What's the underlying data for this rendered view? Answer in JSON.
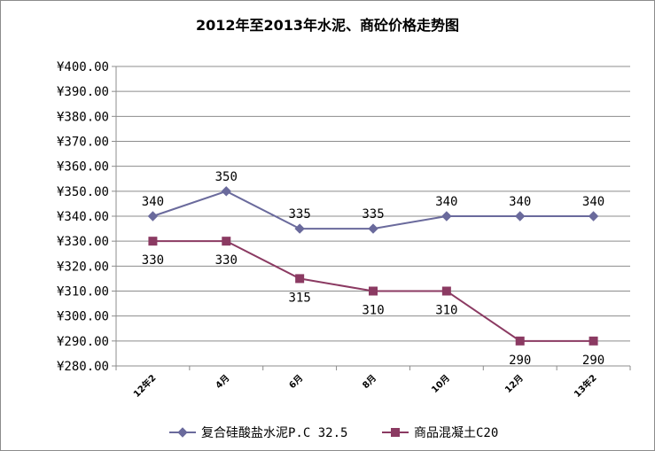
{
  "chart_data": {
    "type": "line",
    "title": "2012年至2013年水泥、商砼价格走势图",
    "categories": [
      "12年2",
      "4月",
      "6月",
      "8月",
      "10月",
      "12月",
      "13年2"
    ],
    "series": [
      {
        "name": "复合硅酸盐水泥P.C 32.5",
        "values": [
          340,
          350,
          335,
          335,
          340,
          340,
          340
        ],
        "color": "#6a6a9c",
        "marker": "diamond",
        "label_position": "above"
      },
      {
        "name": "商品混凝土C20",
        "values": [
          330,
          330,
          315,
          310,
          310,
          290,
          290
        ],
        "color": "#8b3a62",
        "marker": "square",
        "label_position": "below"
      }
    ],
    "ylim": [
      280,
      400
    ],
    "ytick_step": 10,
    "ytick_prefix": "¥",
    "ytick_decimals": 2,
    "grid": true,
    "legend": "bottom"
  }
}
